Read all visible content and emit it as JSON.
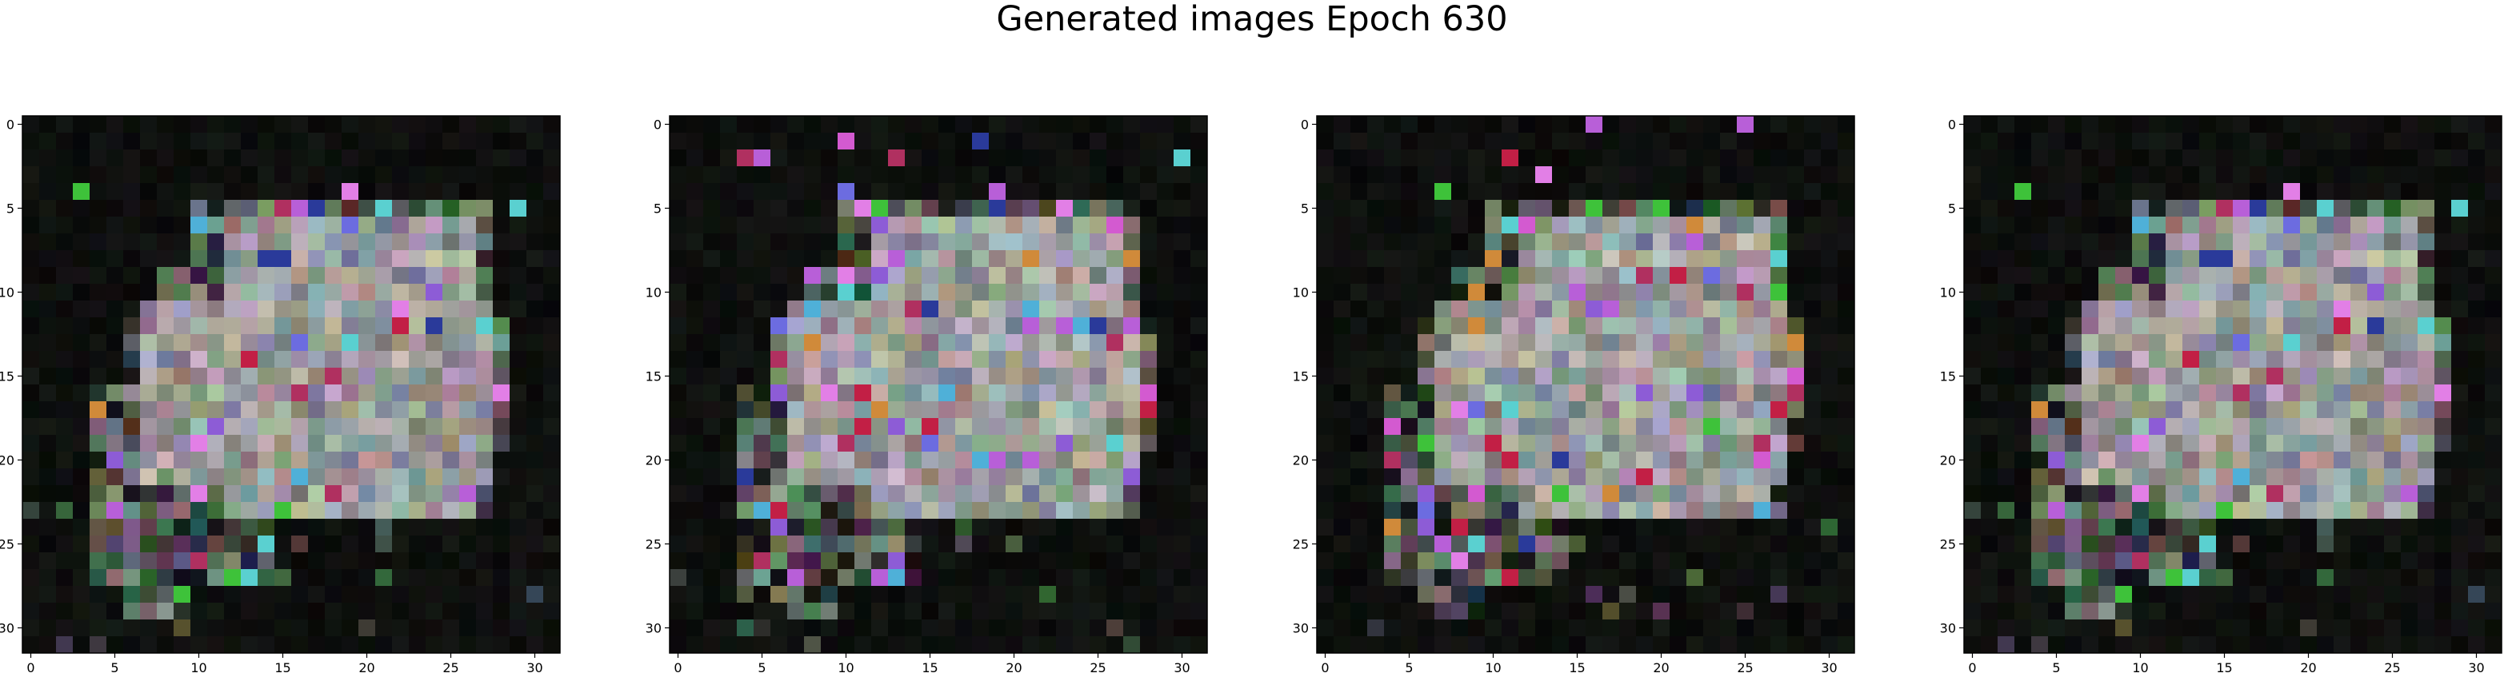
{
  "figure": {
    "title": "Generated images Epoch 630"
  },
  "axes": {
    "xticks": [
      "0",
      "5",
      "10",
      "15",
      "20",
      "25",
      "30"
    ],
    "yticks": [
      "0",
      "5",
      "10",
      "15",
      "20",
      "25",
      "30"
    ]
  },
  "panels": [
    {
      "name": "generated-image-1",
      "seed": 11
    },
    {
      "name": "generated-image-2",
      "seed": 29
    },
    {
      "name": "generated-image-3",
      "seed": 47
    },
    {
      "name": "generated-image-4",
      "seed": 11
    }
  ],
  "colors": {
    "background": "#ffffff",
    "image_base": "#050505",
    "axis": "#000000"
  }
}
